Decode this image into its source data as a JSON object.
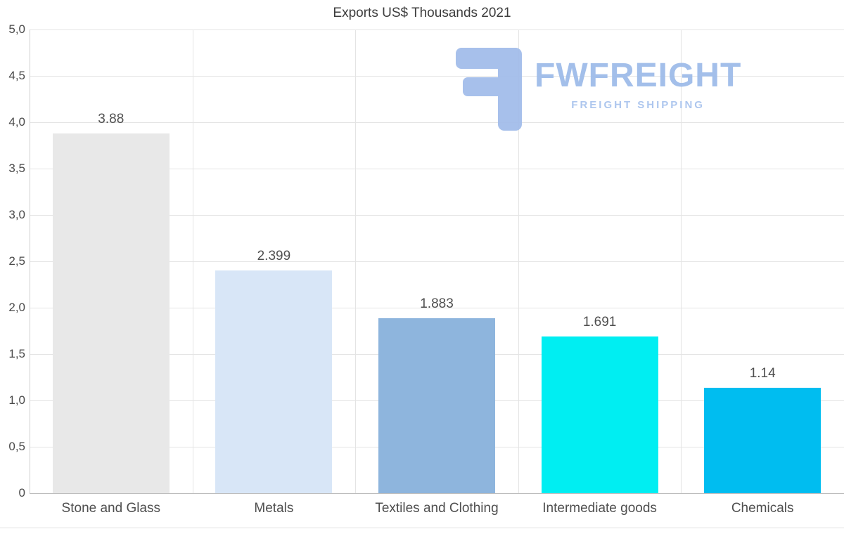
{
  "chart_data": {
    "type": "bar",
    "title": "Exports US$ Thousands 2021",
    "categories": [
      "Stone and Glass",
      "Metals",
      "Textiles and Clothing",
      "Intermediate goods",
      "Chemicals"
    ],
    "values": [
      3.88,
      2.399,
      1.883,
      1.691,
      1.14
    ],
    "value_labels": [
      "3.88",
      "2.399",
      "1.883",
      "1.691",
      "1.14"
    ],
    "bar_colors": [
      "#e8e8e8",
      "#d8e6f7",
      "#8eb5dd",
      "#00eef2",
      "#00bdf0"
    ],
    "xlabel": "",
    "ylabel": "",
    "ylim": [
      0,
      5
    ],
    "ytick_step": 0.5,
    "ytick_labels": [
      "0",
      "0,5",
      "1,0",
      "1,5",
      "2,0",
      "2,5",
      "3,0",
      "3,5",
      "4,0",
      "4,5",
      "5,0"
    ],
    "grid": true,
    "legend": "none"
  },
  "watermark": {
    "brand": "FWFREIGHT",
    "tagline": "FREIGHT SHIPPING",
    "color": "#9fbce9"
  }
}
